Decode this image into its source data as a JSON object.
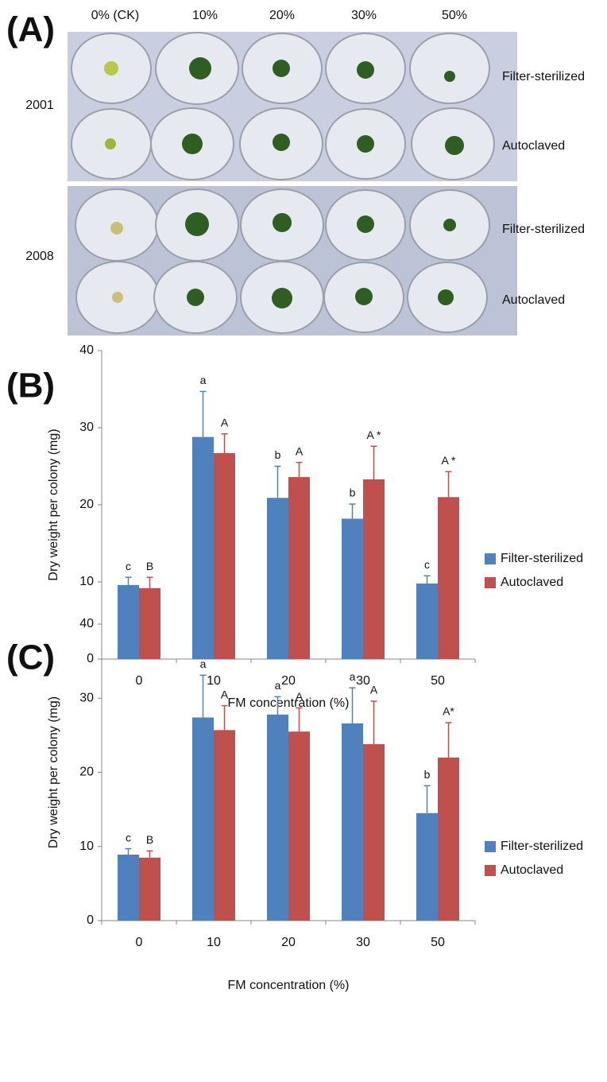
{
  "panel_a": {
    "label": "(A)",
    "columns": [
      "0% (CK)",
      "10%",
      "20%",
      "30%",
      "50%"
    ],
    "years": [
      "2001",
      "2008"
    ],
    "row_labels": [
      "Filter-sterilized",
      "Autoclaved",
      "Filter-sterilized",
      "Autoclaved"
    ]
  },
  "chart_data": [
    {
      "type": "bar",
      "panel_label": "(B)",
      "x_label": "FM concentration (%)",
      "y_label": "Dry weight per colony (mg)",
      "categories": [
        "0",
        "10",
        "20",
        "30",
        "50"
      ],
      "ylim": [
        0,
        40
      ],
      "yticks": [
        0,
        10,
        20,
        30,
        40
      ],
      "grid": false,
      "legend": "right",
      "series": [
        {
          "name": "Filter-sterilized",
          "color": "#4f81bd",
          "values": [
            9.6,
            28.8,
            20.9,
            18.2,
            9.8
          ],
          "errors": [
            1.0,
            5.9,
            4.1,
            1.9,
            1.0
          ],
          "letters": [
            "c",
            "a",
            "b",
            "b",
            "c"
          ]
        },
        {
          "name": "Autoclaved",
          "color": "#c0504d",
          "values": [
            9.2,
            26.7,
            23.6,
            23.3,
            21.0
          ],
          "errors": [
            1.4,
            2.5,
            1.9,
            4.3,
            3.3
          ],
          "letters": [
            "B",
            "A",
            "A",
            "A *",
            "A *"
          ]
        }
      ]
    },
    {
      "type": "bar",
      "panel_label": "(C)",
      "x_label": "FM concentration (%)",
      "y_label": "Dry weight per colony (mg)",
      "categories": [
        "0",
        "10",
        "20",
        "30",
        "50"
      ],
      "ylim": [
        0,
        40
      ],
      "yticks": [
        0,
        10,
        20,
        30,
        40
      ],
      "grid": false,
      "legend": "right",
      "series": [
        {
          "name": "Filter-sterilized",
          "color": "#4f81bd",
          "values": [
            8.9,
            27.4,
            27.8,
            26.6,
            14.5
          ],
          "errors": [
            0.8,
            5.7,
            2.4,
            4.8,
            3.7
          ],
          "letters": [
            "c",
            "a",
            "a",
            "a",
            "b"
          ]
        },
        {
          "name": "Autoclaved",
          "color": "#c0504d",
          "values": [
            8.5,
            25.7,
            25.5,
            23.8,
            22.0
          ],
          "errors": [
            0.9,
            3.3,
            3.2,
            5.8,
            4.7
          ],
          "letters": [
            "B",
            "A",
            "A",
            "A",
            "A*"
          ]
        }
      ]
    }
  ]
}
